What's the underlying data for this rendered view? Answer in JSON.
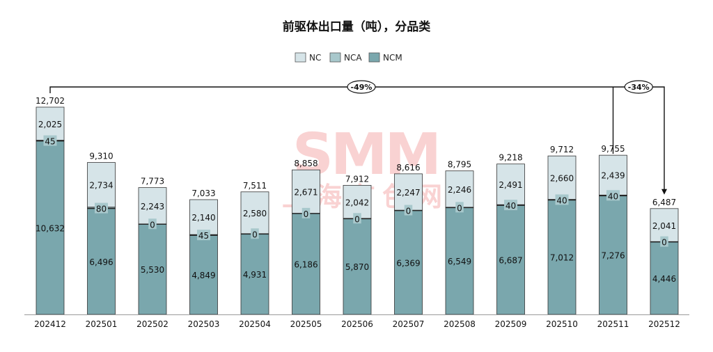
{
  "chart_data": {
    "type": "bar",
    "stacked": true,
    "title": "前驱体出口量（吨），分品类",
    "xlabel": "",
    "ylabel": "",
    "legend_position": "top-center",
    "grid": false,
    "categories": [
      "202412",
      "202501",
      "202502",
      "202503",
      "202504",
      "202505",
      "202506",
      "202507",
      "202508",
      "202509",
      "202510",
      "202511",
      "202512"
    ],
    "series": [
      {
        "name": "NCM",
        "color": "#7aa7ad",
        "values": [
          10632,
          6496,
          5530,
          4849,
          4931,
          6186,
          5870,
          6369,
          6549,
          6687,
          7012,
          7276,
          4446
        ]
      },
      {
        "name": "NCA",
        "color": "#a8c8cc",
        "values": [
          45,
          80,
          0,
          45,
          0,
          0,
          0,
          0,
          0,
          40,
          40,
          40,
          0
        ]
      },
      {
        "name": "NC",
        "color": "#d6e4e8",
        "values": [
          2025,
          2734,
          2243,
          2140,
          2580,
          2671,
          2042,
          2247,
          2246,
          2491,
          2660,
          2439,
          2041
        ]
      }
    ],
    "totals": [
      12702,
      9310,
      7773,
      7033,
      7511,
      8858,
      7912,
      8616,
      8795,
      9218,
      9712,
      9755,
      6487
    ],
    "labels": {
      "NCM": [
        "10,632",
        "6,496",
        "5,530",
        "4,849",
        "4,931",
        "6,186",
        "5,870",
        "6,369",
        "6,549",
        "6,687",
        "7,012",
        "7,276",
        "4,446"
      ],
      "NCA": [
        "45",
        "80",
        "0",
        "45",
        "0",
        "0",
        "0",
        "0",
        "0",
        "40",
        "40",
        "40",
        "0"
      ],
      "NC": [
        "2,025",
        "2,734",
        "2,243",
        "2,140",
        "2,580",
        "2,671",
        "2,042",
        "2,247",
        "2,246",
        "2,491",
        "2,660",
        "2,439",
        "2,041"
      ],
      "totals": [
        "12,702",
        "9,310",
        "7,773",
        "7,033",
        "7,511",
        "8,858",
        "7,912",
        "8,616",
        "8,795",
        "9,218",
        "9,712",
        "9,755",
        "6,487"
      ]
    },
    "ylim": [
      0,
      13000
    ],
    "annotations": [
      {
        "from": "202412",
        "to": "202512",
        "text": "-49%"
      },
      {
        "from": "202511",
        "to": "202512",
        "text": "-34%"
      }
    ],
    "legend": [
      "NC",
      "NCA",
      "NCM"
    ]
  },
  "watermark": {
    "logo": "SMM",
    "text": "上海有色网"
  }
}
